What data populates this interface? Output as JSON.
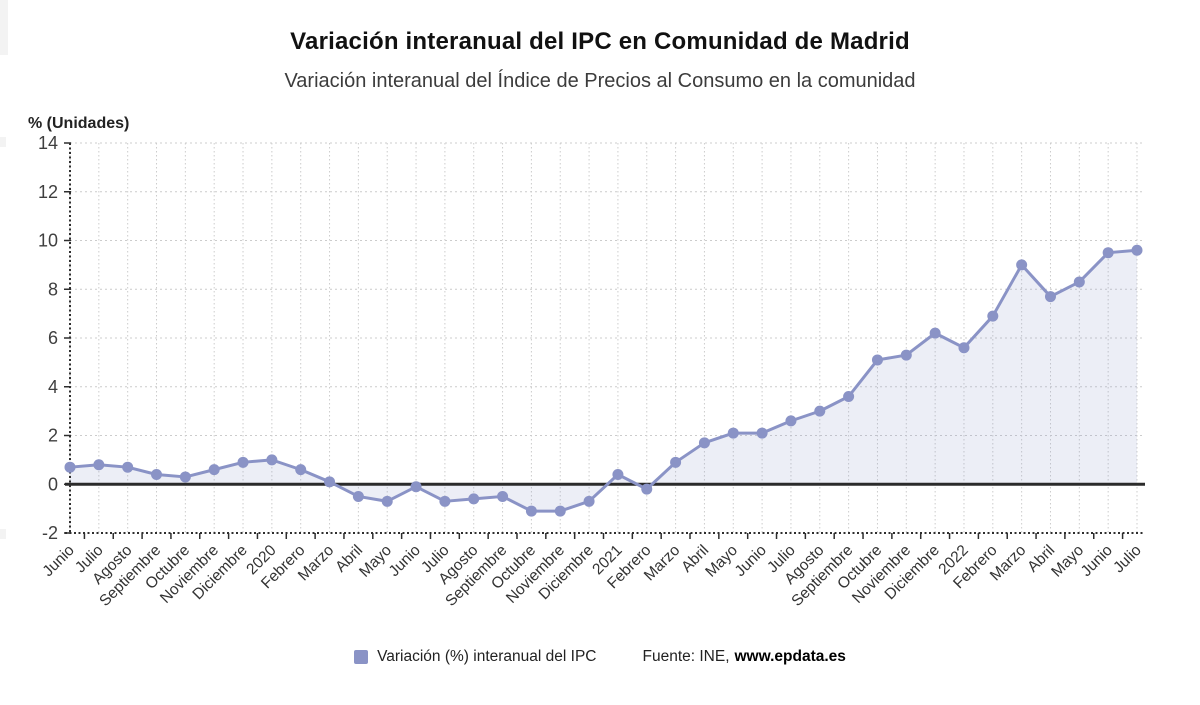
{
  "page": {
    "title": "Variación interanual del IPC en Comunidad de Madrid",
    "subtitle": "Variación interanual del Índice de Precios al Consumo en la comunidad"
  },
  "legend": {
    "series_label": "Variación (%) interanual del IPC",
    "source_prefix": "Fuente: INE,",
    "source_link": "www.epdata.es"
  },
  "colors": {
    "series": "#8a93c6",
    "area_fill": "rgba(138,147,198,0.16)",
    "zero_line": "#2b2b2b",
    "axis": "#2e2e2e",
    "grid": "#cccccc",
    "tick_label": "#3f3f3f"
  },
  "chart_data": {
    "type": "line",
    "title": "Variación interanual del IPC en Comunidad de Madrid",
    "subtitle": "Variación interanual del Índice de Precios al Consumo en la comunidad",
    "ylabel": "% (Unidades)",
    "xlabel": "",
    "ylim": [
      -2,
      14
    ],
    "yticks": [
      14,
      12,
      10,
      8,
      6,
      4,
      2,
      0,
      -2
    ],
    "grid": true,
    "legend_position": "bottom",
    "categories": [
      "Junio",
      "Julio",
      "Agosto",
      "Septiembre",
      "Octubre",
      "Noviembre",
      "Diciembre",
      "2020",
      "Febrero",
      "Marzo",
      "Abril",
      "Mayo",
      "Junio",
      "Julio",
      "Agosto",
      "Septiembre",
      "Octubre",
      "Noviembre",
      "Diciembre",
      "2021",
      "Febrero",
      "Marzo",
      "Abril",
      "Mayo",
      "Junio",
      "Julio",
      "Agosto",
      "Septiembre",
      "Octubre",
      "Noviembre",
      "Diciembre",
      "2022",
      "Febrero",
      "Marzo",
      "Abril",
      "Mayo",
      "Junio",
      "Julio"
    ],
    "series": [
      {
        "name": "Variación (%) interanual del IPC",
        "values": [
          0.7,
          0.8,
          0.7,
          0.4,
          0.3,
          0.6,
          0.9,
          1.0,
          0.6,
          0.1,
          -0.5,
          -0.7,
          -0.1,
          -0.7,
          -0.6,
          -0.5,
          -1.1,
          -1.1,
          -0.7,
          0.4,
          -0.2,
          0.9,
          1.7,
          2.1,
          2.1,
          2.6,
          3.0,
          3.6,
          5.1,
          5.3,
          6.2,
          5.6,
          6.9,
          9.0,
          7.7,
          8.3,
          9.5,
          9.6
        ]
      }
    ]
  }
}
